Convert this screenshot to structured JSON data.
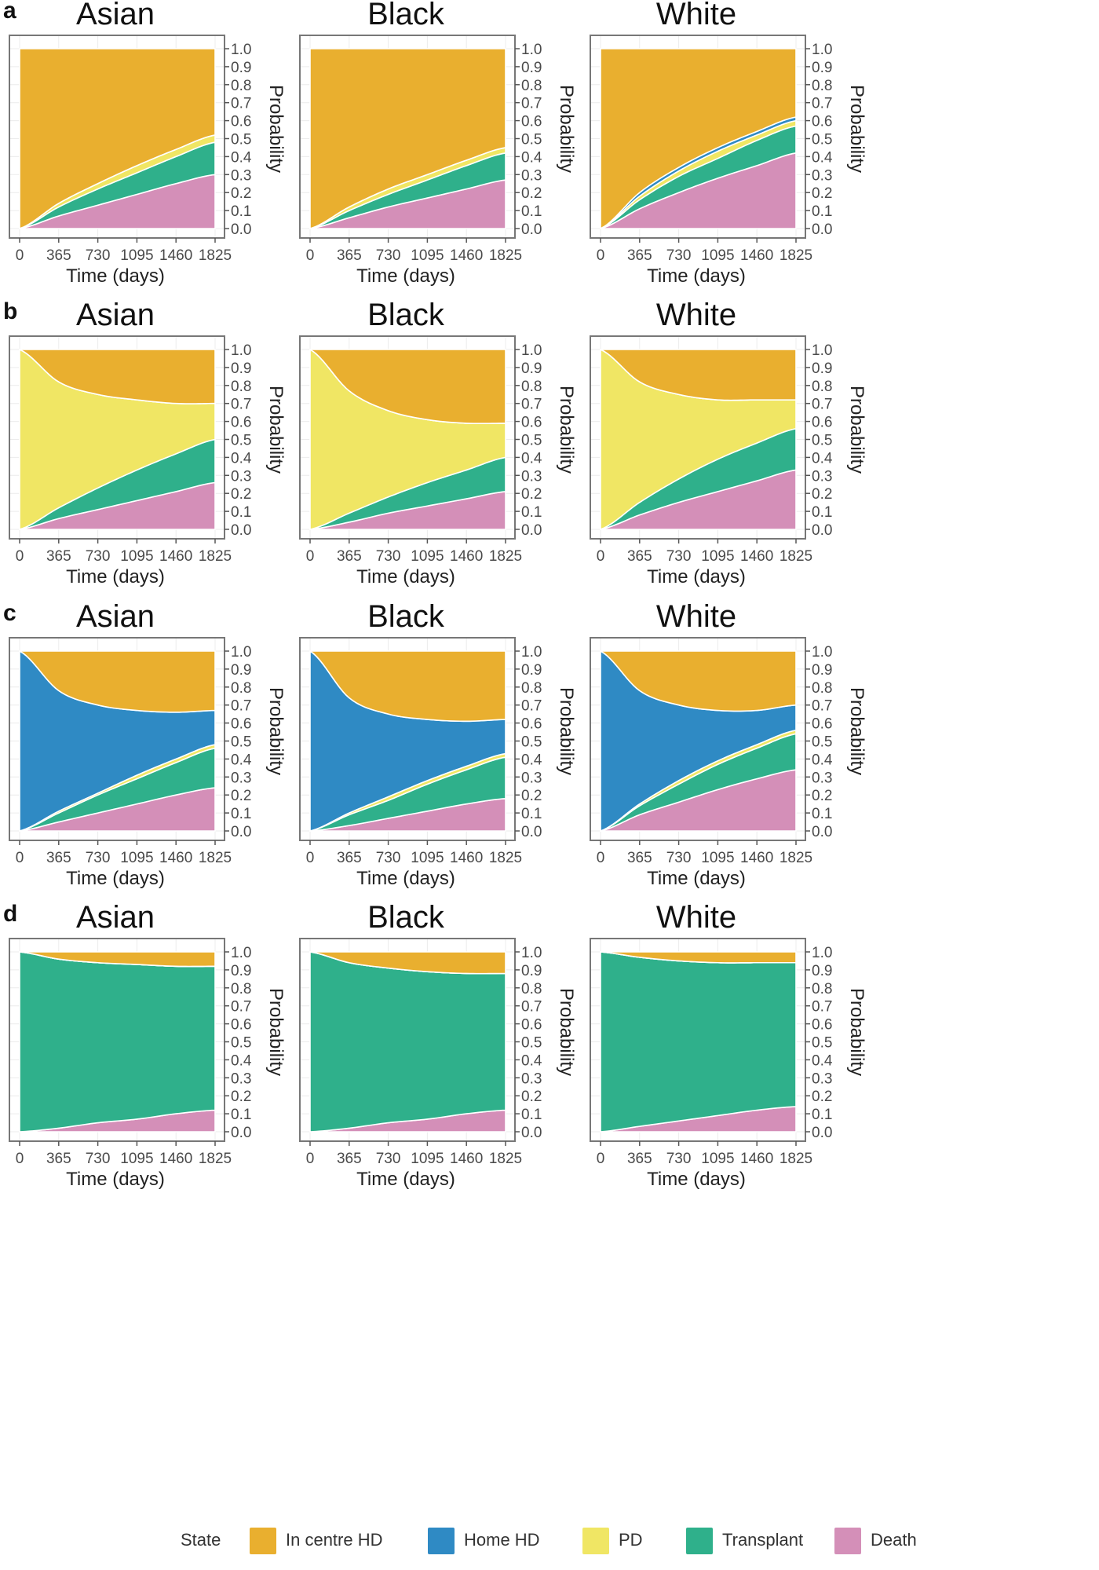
{
  "chart_data": {
    "type": "area",
    "subtype": "stacked-area (state occupation probabilities)",
    "xlabel": "Time (days)",
    "ylabel": "Probability",
    "x_ticks": [
      0,
      365,
      730,
      1095,
      1460,
      1825
    ],
    "y_ticks": [
      "0.0",
      "0.1",
      "0.2",
      "0.3",
      "0.4",
      "0.5",
      "0.6",
      "0.7",
      "0.8",
      "0.9",
      "1.0"
    ],
    "xlim": [
      0,
      1825
    ],
    "ylim": [
      0,
      1
    ],
    "grid": true,
    "y_axis_side": "right",
    "legend": {
      "title": "State",
      "placement": "bottom",
      "entries": [
        {
          "label": "In centre HD",
          "color": "#E9AF2F"
        },
        {
          "label": "Home HD",
          "color": "#2F8AC4"
        },
        {
          "label": "PD",
          "color": "#F0E664"
        },
        {
          "label": "Transplant",
          "color": "#2FB08B"
        },
        {
          "label": "Death",
          "color": "#D48FB8"
        }
      ]
    },
    "stack_order_bottom_to_top": [
      "Death",
      "Transplant",
      "PD",
      "Home HD",
      "In centre HD"
    ],
    "note": "Values are cumulative upper boundaries of each stacked state at each x tick (0,365,730,1095,1460,1825); In centre HD fills to 1.0.",
    "rows": [
      {
        "letter": "a",
        "panels": [
          {
            "title": "Asian",
            "boundaries": {
              "Death": [
                0,
                0.07,
                0.13,
                0.19,
                0.25,
                0.3
              ],
              "Transplant": [
                0,
                0.12,
                0.22,
                0.31,
                0.4,
                0.48
              ],
              "PD": [
                0,
                0.14,
                0.25,
                0.35,
                0.44,
                0.52
              ],
              "Home HD": [
                0,
                0.14,
                0.25,
                0.35,
                0.44,
                0.52
              ]
            }
          },
          {
            "title": "Black",
            "boundaries": {
              "Death": [
                0,
                0.06,
                0.12,
                0.17,
                0.22,
                0.27
              ],
              "Transplant": [
                0,
                0.1,
                0.19,
                0.27,
                0.35,
                0.42
              ],
              "PD": [
                0,
                0.12,
                0.22,
                0.3,
                0.38,
                0.45
              ],
              "Home HD": [
                0,
                0.12,
                0.22,
                0.3,
                0.38,
                0.45
              ]
            }
          },
          {
            "title": "White",
            "boundaries": {
              "Death": [
                0,
                0.11,
                0.2,
                0.28,
                0.35,
                0.42
              ],
              "Transplant": [
                0,
                0.16,
                0.29,
                0.39,
                0.49,
                0.57
              ],
              "PD": [
                0,
                0.18,
                0.32,
                0.43,
                0.52,
                0.6
              ],
              "Home HD": [
                0,
                0.2,
                0.34,
                0.45,
                0.54,
                0.62
              ]
            }
          }
        ]
      },
      {
        "letter": "b",
        "panels": [
          {
            "title": "Asian",
            "boundaries": {
              "Death": [
                0,
                0.06,
                0.11,
                0.16,
                0.21,
                0.26
              ],
              "Transplant": [
                0,
                0.12,
                0.23,
                0.33,
                0.42,
                0.5
              ],
              "PD": [
                1.0,
                0.82,
                0.75,
                0.72,
                0.7,
                0.7
              ],
              "Home HD": [
                1.0,
                0.82,
                0.75,
                0.72,
                0.7,
                0.7
              ]
            }
          },
          {
            "title": "Black",
            "boundaries": {
              "Death": [
                0,
                0.04,
                0.09,
                0.13,
                0.17,
                0.21
              ],
              "Transplant": [
                0,
                0.09,
                0.18,
                0.26,
                0.33,
                0.4
              ],
              "PD": [
                1.0,
                0.77,
                0.66,
                0.61,
                0.59,
                0.59
              ],
              "Home HD": [
                1.0,
                0.77,
                0.66,
                0.61,
                0.59,
                0.59
              ]
            }
          },
          {
            "title": "White",
            "boundaries": {
              "Death": [
                0,
                0.08,
                0.15,
                0.21,
                0.27,
                0.33
              ],
              "Transplant": [
                0,
                0.15,
                0.28,
                0.39,
                0.48,
                0.56
              ],
              "PD": [
                1.0,
                0.82,
                0.75,
                0.72,
                0.72,
                0.72
              ],
              "Home HD": [
                1.0,
                0.82,
                0.75,
                0.72,
                0.72,
                0.72
              ]
            }
          }
        ]
      },
      {
        "letter": "c",
        "panels": [
          {
            "title": "Asian",
            "boundaries": {
              "Death": [
                0,
                0.05,
                0.1,
                0.15,
                0.2,
                0.24
              ],
              "Transplant": [
                0,
                0.1,
                0.2,
                0.29,
                0.38,
                0.46
              ],
              "PD": [
                0,
                0.11,
                0.21,
                0.31,
                0.4,
                0.48
              ],
              "Home HD": [
                1.0,
                0.78,
                0.7,
                0.67,
                0.66,
                0.67
              ]
            }
          },
          {
            "title": "Black",
            "boundaries": {
              "Death": [
                0,
                0.03,
                0.07,
                0.11,
                0.15,
                0.18
              ],
              "Transplant": [
                0,
                0.09,
                0.17,
                0.26,
                0.34,
                0.41
              ],
              "PD": [
                0,
                0.1,
                0.19,
                0.28,
                0.36,
                0.43
              ],
              "Home HD": [
                1.0,
                0.74,
                0.65,
                0.62,
                0.61,
                0.62
              ]
            }
          },
          {
            "title": "White",
            "boundaries": {
              "Death": [
                0,
                0.09,
                0.16,
                0.23,
                0.29,
                0.34
              ],
              "Transplant": [
                0,
                0.14,
                0.26,
                0.37,
                0.46,
                0.54
              ],
              "PD": [
                0,
                0.15,
                0.28,
                0.39,
                0.48,
                0.56
              ],
              "Home HD": [
                1.0,
                0.78,
                0.7,
                0.67,
                0.67,
                0.7
              ]
            }
          }
        ]
      },
      {
        "letter": "d",
        "panels": [
          {
            "title": "Asian",
            "boundaries": {
              "Death": [
                0,
                0.02,
                0.05,
                0.07,
                0.1,
                0.12
              ],
              "Transplant": [
                1.0,
                0.96,
                0.94,
                0.93,
                0.92,
                0.92
              ],
              "PD": [
                1.0,
                0.96,
                0.94,
                0.93,
                0.92,
                0.92
              ],
              "Home HD": [
                1.0,
                0.96,
                0.94,
                0.93,
                0.92,
                0.92
              ]
            }
          },
          {
            "title": "Black",
            "boundaries": {
              "Death": [
                0,
                0.02,
                0.05,
                0.07,
                0.1,
                0.12
              ],
              "Transplant": [
                1.0,
                0.94,
                0.91,
                0.89,
                0.88,
                0.88
              ],
              "PD": [
                1.0,
                0.94,
                0.91,
                0.89,
                0.88,
                0.88
              ],
              "Home HD": [
                1.0,
                0.94,
                0.91,
                0.89,
                0.88,
                0.88
              ]
            }
          },
          {
            "title": "White",
            "boundaries": {
              "Death": [
                0,
                0.03,
                0.06,
                0.09,
                0.12,
                0.14
              ],
              "Transplant": [
                1.0,
                0.97,
                0.95,
                0.94,
                0.94,
                0.94
              ],
              "PD": [
                1.0,
                0.97,
                0.95,
                0.94,
                0.94,
                0.94
              ],
              "Home HD": [
                1.0,
                0.97,
                0.95,
                0.94,
                0.94,
                0.94
              ]
            }
          }
        ]
      }
    ]
  }
}
